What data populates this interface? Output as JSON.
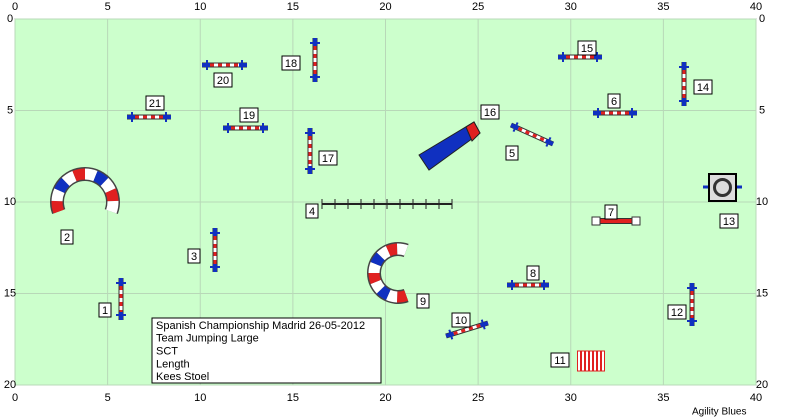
{
  "axes": {
    "x_ticks": [
      0,
      5,
      10,
      15,
      20,
      25,
      30,
      35,
      40
    ],
    "y_ticks": [
      0,
      5,
      10,
      15,
      20
    ]
  },
  "obstacles": [
    "1",
    "2",
    "3",
    "4",
    "5",
    "6",
    "7",
    "8",
    "9",
    "10",
    "11",
    "12",
    "13",
    "14",
    "15",
    "16",
    "17",
    "18",
    "19",
    "20",
    "21"
  ],
  "info": [
    "Spanish Championship  Madrid 26-05-2012",
    "Team Jumping Large",
    "SCT",
    "Length",
    "Kees Stoel"
  ],
  "footer": "Agility Blues"
}
